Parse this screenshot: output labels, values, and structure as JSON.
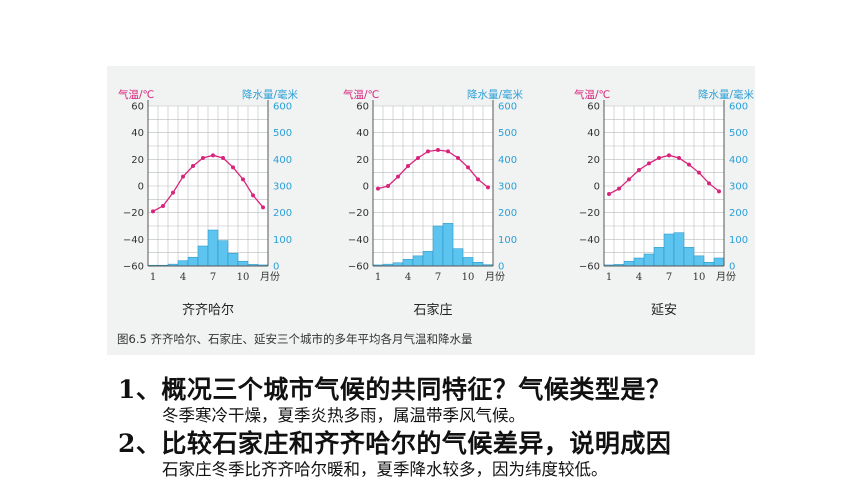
{
  "figure": {
    "caption": "图6.5 齐齐哈尔、石家庄、延安三个城市的多年平均各月气温和降水量"
  },
  "chart_data": [
    {
      "type": "bar",
      "city": "齐齐哈尔",
      "left_axis_label": "气温/℃",
      "right_axis_label": "降水量/毫米",
      "temp_ticks": [
        "60",
        "40",
        "20",
        "0",
        "−20",
        "−40",
        "−60"
      ],
      "precip_ticks": [
        "600",
        "500",
        "400",
        "300",
        "200",
        "100",
        "0"
      ],
      "temp_range": [
        -60,
        60
      ],
      "precip_range": [
        0,
        600
      ],
      "x_ticks": [
        "1",
        "4",
        "7",
        "10"
      ],
      "x_unit": "月份",
      "months": [
        1,
        2,
        3,
        4,
        5,
        6,
        7,
        8,
        9,
        10,
        11,
        12
      ],
      "temperature": [
        -19,
        -15,
        -5,
        7,
        15,
        21,
        23,
        21,
        14,
        5,
        -7,
        -16
      ],
      "precipitation": [
        3,
        3,
        7,
        20,
        33,
        75,
        135,
        95,
        48,
        18,
        6,
        4
      ]
    },
    {
      "type": "bar",
      "city": "石家庄",
      "left_axis_label": "气温/℃",
      "right_axis_label": "降水量/毫米",
      "temp_ticks": [
        "60",
        "40",
        "20",
        "0",
        "−20",
        "−40",
        "−60"
      ],
      "precip_ticks": [
        "600",
        "500",
        "400",
        "300",
        "200",
        "100",
        "0"
      ],
      "temp_range": [
        -60,
        60
      ],
      "precip_range": [
        0,
        600
      ],
      "x_ticks": [
        "1",
        "4",
        "7",
        "10"
      ],
      "x_unit": "月份",
      "months": [
        1,
        2,
        3,
        4,
        5,
        6,
        7,
        8,
        9,
        10,
        11,
        12
      ],
      "temperature": [
        -2,
        0,
        7,
        15,
        21,
        26,
        27,
        26,
        21,
        14,
        5,
        -1
      ],
      "precipitation": [
        4,
        7,
        12,
        25,
        38,
        55,
        150,
        160,
        65,
        32,
        14,
        5
      ]
    },
    {
      "type": "bar",
      "city": "延安",
      "left_axis_label": "气温/℃",
      "right_axis_label": "降水量/毫米",
      "temp_ticks": [
        "60",
        "40",
        "20",
        "0",
        "−20",
        "−40",
        "−60"
      ],
      "precip_ticks": [
        "600",
        "500",
        "400",
        "300",
        "200",
        "100",
        "0"
      ],
      "temp_range": [
        -60,
        60
      ],
      "precip_range": [
        0,
        600
      ],
      "x_ticks": [
        "1",
        "4",
        "7",
        "10"
      ],
      "x_unit": "月份",
      "months": [
        1,
        2,
        3,
        4,
        5,
        6,
        7,
        8,
        9,
        10,
        11,
        12
      ],
      "temperature": [
        -6,
        -2,
        5,
        12,
        17,
        21,
        23,
        21,
        16,
        10,
        2,
        -4
      ],
      "precipitation": [
        4,
        6,
        18,
        30,
        45,
        70,
        120,
        125,
        70,
        38,
        14,
        30
      ]
    }
  ],
  "questions": [
    {
      "q": "1、概况三个城市气候的共同特征？气候类型是？",
      "a": "冬季寒冷干燥，夏季炎热多雨，属温带季风气候。"
    },
    {
      "q": "2、比较石家庄和齐齐哈尔的气候差异，说明成因",
      "a": "石家庄冬季比齐齐哈尔暖和，夏季降水较多，因为纬度较低。"
    }
  ],
  "colors": {
    "temperature": "#d8247c",
    "precipitation_fill": "#5cc4ee",
    "precipitation_stroke": "#1f8fc4",
    "axis_label": "#2aa0d8",
    "temp_label": "#d8247c"
  }
}
